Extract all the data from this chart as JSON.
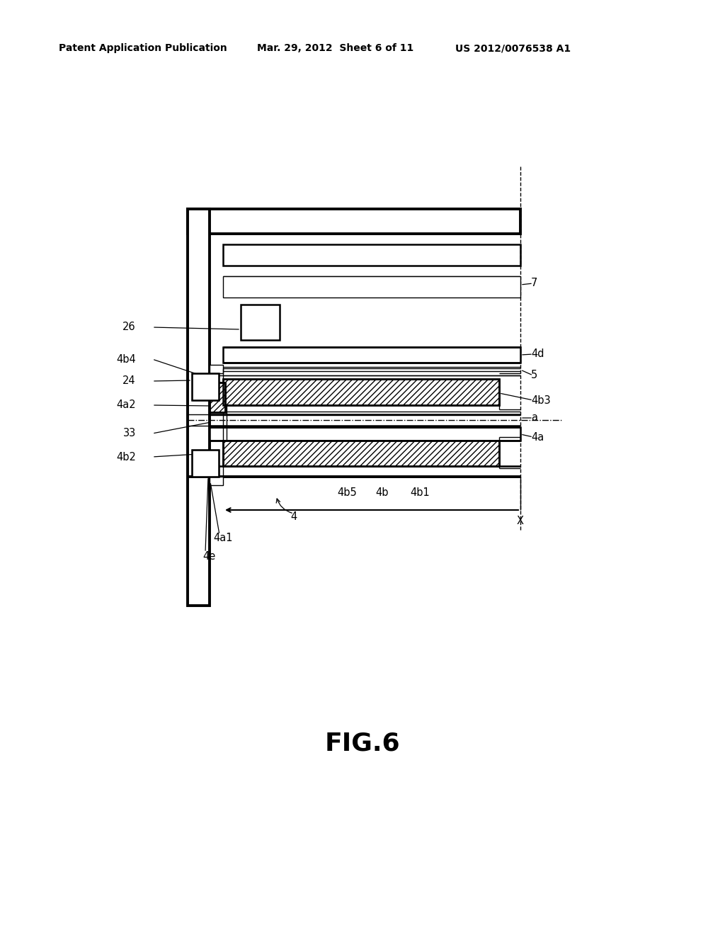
{
  "bg_color": "#ffffff",
  "line_color": "#000000",
  "header_left": "Patent Application Publication",
  "header_mid": "Mar. 29, 2012  Sheet 6 of 11",
  "header_right": "US 2012/0076538 A1",
  "figure_label": "FIG.6",
  "fig_w": 10.24,
  "fig_h": 13.2,
  "dpi": 100
}
